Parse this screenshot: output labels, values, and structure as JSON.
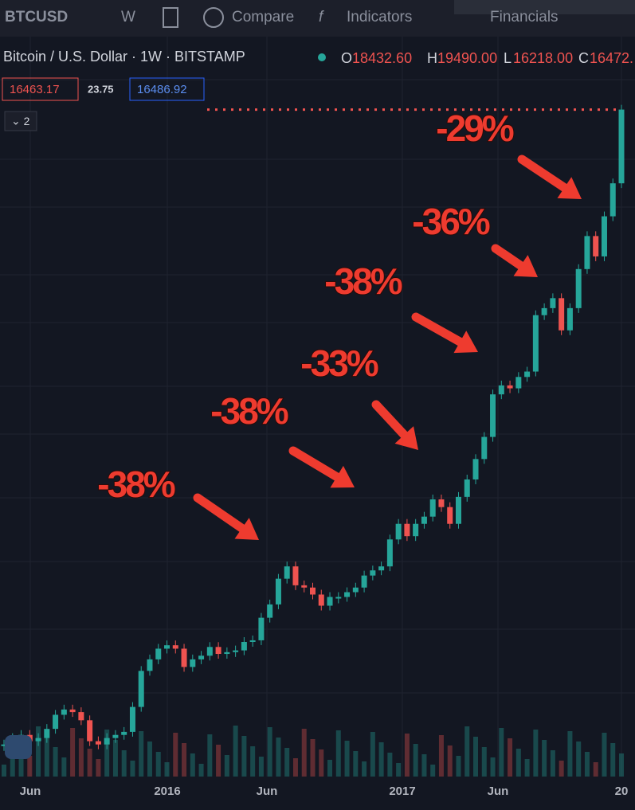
{
  "toolbar": {
    "symbol": "BTCUSD",
    "interval": "W",
    "compare": "Compare",
    "indicators": "Indicators",
    "financials": "Financials"
  },
  "legend": {
    "title": "Bitcoin / U.S. Dollar · 1W · BITSTAMP",
    "open_label": "O",
    "open": "18432.60",
    "high_label": "H",
    "high": "19490.00",
    "low_label": "L",
    "low": "16218.00",
    "close_label": "C",
    "close": "16472.",
    "bid": "16463.17",
    "spread": "23.75",
    "ask": "16486.92",
    "collapsed_count": "2"
  },
  "chart_data": {
    "type": "candlestick",
    "log_scale": true,
    "ylim": [
      150,
      25000
    ],
    "up_color": "#26a69a",
    "down_color": "#ef5350",
    "x_axis_labels": [
      "Jun",
      "2016",
      "Jun",
      "2017",
      "Jun",
      "20"
    ],
    "values": [
      225,
      235,
      240,
      230,
      235,
      250,
      275,
      285,
      280,
      265,
      230,
      225,
      235,
      240,
      245,
      290,
      370,
      400,
      430,
      440,
      430,
      380,
      400,
      410,
      435,
      415,
      420,
      425,
      450,
      455,
      530,
      580,
      690,
      750,
      660,
      650,
      620,
      575,
      610,
      610,
      630,
      650,
      705,
      730,
      750,
      900,
      1000,
      920,
      1000,
      1050,
      1180,
      1120,
      1000,
      1200,
      1350,
      1550,
      1800,
      2400,
      2550,
      2500,
      2700,
      2800,
      4100,
      4300,
      4600,
      3700,
      4300,
      5600,
      7000,
      6100,
      8000,
      10000,
      16463
    ],
    "annotations": [
      "-29%",
      "-36%",
      "-38%",
      "-33%",
      "-38%",
      "-38%"
    ]
  }
}
